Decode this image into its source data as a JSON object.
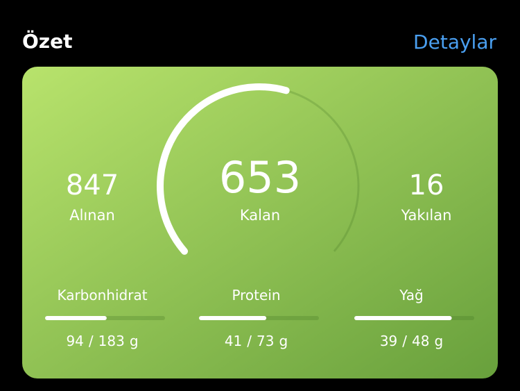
{
  "header": {
    "title": "Özet",
    "link": "Detaylar"
  },
  "summary": {
    "eaten": {
      "value": 847,
      "label": "Alınan"
    },
    "remaining": {
      "value": 653,
      "label": "Kalan"
    },
    "burned": {
      "value": 16,
      "label": "Yakılan"
    }
  },
  "macros": [
    {
      "name": "Karbonhidrat",
      "consumed": 94,
      "separator": "/",
      "goal": 183,
      "unit": "g"
    },
    {
      "name": "Protein",
      "consumed": 41,
      "separator": "/",
      "goal": 73,
      "unit": "g"
    },
    {
      "name": "Yağ",
      "consumed": 39,
      "separator": "/",
      "goal": 48,
      "unit": "g"
    }
  ]
}
